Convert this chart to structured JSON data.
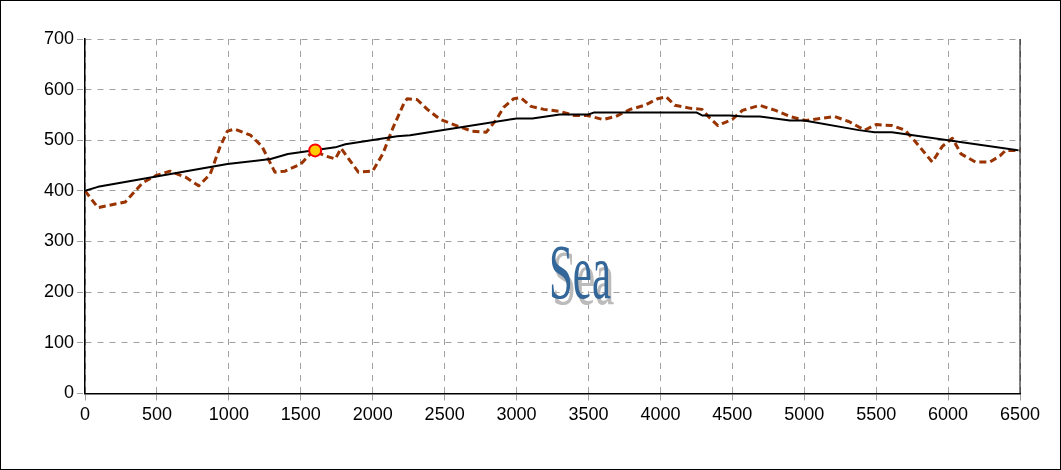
{
  "chart_data": {
    "type": "line",
    "xlim": [
      0,
      6500
    ],
    "xticks": [
      0,
      500,
      1000,
      1500,
      2000,
      2500,
      3000,
      3500,
      4000,
      4500,
      5000,
      5500,
      6000,
      6500
    ],
    "ylim": [
      0,
      700
    ],
    "yticks": [
      0,
      100,
      200,
      300,
      400,
      500,
      600,
      700
    ],
    "grid": true,
    "annotations": [
      "Sea"
    ],
    "series": [
      {
        "color": "#993300",
        "line_style": "dashed",
        "marker": "none",
        "x": [
          0,
          90,
          280,
          400,
          490,
          590,
          700,
          790,
          870,
          940,
          990,
          1040,
          1150,
          1230,
          1320,
          1390,
          1500,
          1590,
          1670,
          1740,
          1780,
          1900,
          2000,
          2070,
          2140,
          2220,
          2240,
          2310,
          2380,
          2470,
          2600,
          2690,
          2790,
          2860,
          2910,
          2980,
          3030,
          3100,
          3190,
          3300,
          3400,
          3490,
          3600,
          3690,
          3790,
          3890,
          3980,
          4040,
          4100,
          4210,
          4290,
          4340,
          4400,
          4430,
          4500,
          4570,
          4690,
          4800,
          4900,
          5010,
          5110,
          5210,
          5310,
          5420,
          5500,
          5610,
          5700,
          5770,
          5890,
          5960,
          6030,
          6090,
          6190,
          6290,
          6360,
          6400,
          6500
        ],
        "values": [
          400,
          367,
          378,
          416,
          430,
          439,
          427,
          410,
          433,
          488,
          518,
          522,
          510,
          488,
          437,
          439,
          453,
          480,
          469,
          463,
          484,
          437,
          439,
          473,
          524,
          575,
          582,
          580,
          561,
          541,
          527,
          518,
          516,
          541,
          565,
          582,
          584,
          567,
          561,
          557,
          549,
          549,
          541,
          547,
          561,
          569,
          582,
          586,
          569,
          563,
          561,
          545,
          529,
          533,
          541,
          559,
          569,
          559,
          547,
          539,
          543,
          547,
          537,
          520,
          531,
          529,
          520,
          498,
          457,
          488,
          504,
          473,
          457,
          457,
          469,
          480,
          480
        ]
      },
      {
        "color": "#000000",
        "line_style": "solid",
        "marker": "none",
        "x": [
          0,
          90,
          990,
          1290,
          1410,
          1740,
          1810,
          2170,
          2260,
          3000,
          3110,
          3300,
          3500,
          3540,
          4250,
          4290,
          4480,
          4580,
          4690,
          4900,
          5000,
          5380,
          5490,
          5610,
          6490
        ],
        "values": [
          400,
          408,
          453,
          463,
          473,
          486,
          492,
          508,
          510,
          543,
          543,
          551,
          551,
          555,
          555,
          549,
          549,
          547,
          547,
          539,
          539,
          520,
          516,
          516,
          480
        ]
      },
      {
        "type": "scatter",
        "color": "#ffcc00",
        "marker": "circle",
        "x": [
          1600
        ],
        "values": [
          480
        ]
      }
    ]
  }
}
